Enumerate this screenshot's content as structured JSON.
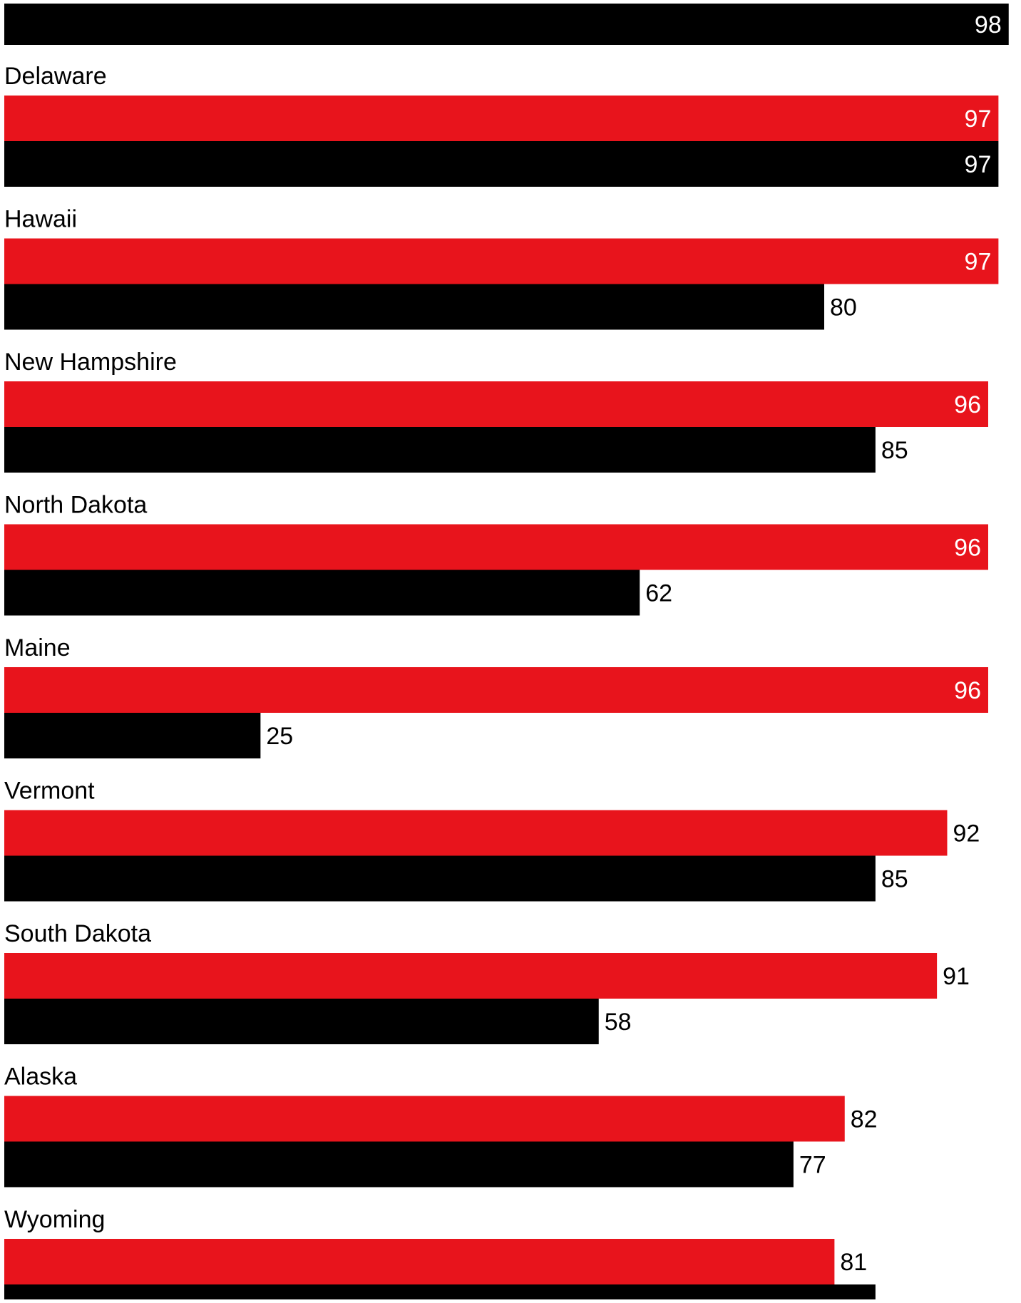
{
  "chart_data": {
    "type": "bar",
    "orientation": "horizontal",
    "title": "",
    "xlabel": "",
    "ylabel": "",
    "xlim": [
      0,
      100
    ],
    "grid": false,
    "legend": "none",
    "colors": {
      "series_a": "#e8141c",
      "series_b": "#000000",
      "label_inside": "#ffffff",
      "label_outside": "#000000"
    },
    "leading_bar": {
      "value": 98,
      "label": "98"
    },
    "categories": [
      "Delaware",
      "Hawaii",
      "New Hampshire",
      "North Dakota",
      "Maine",
      "Vermont",
      "South Dakota",
      "Alaska",
      "Wyoming"
    ],
    "series": [
      {
        "color": "#e8141c",
        "values": [
          97,
          97,
          96,
          96,
          96,
          92,
          91,
          82,
          81
        ]
      },
      {
        "color": "#000000",
        "values": [
          97,
          80,
          85,
          62,
          25,
          85,
          58,
          77,
          85
        ],
        "value_labels_visible": [
          true,
          true,
          true,
          true,
          true,
          true,
          true,
          true,
          false
        ]
      }
    ]
  }
}
